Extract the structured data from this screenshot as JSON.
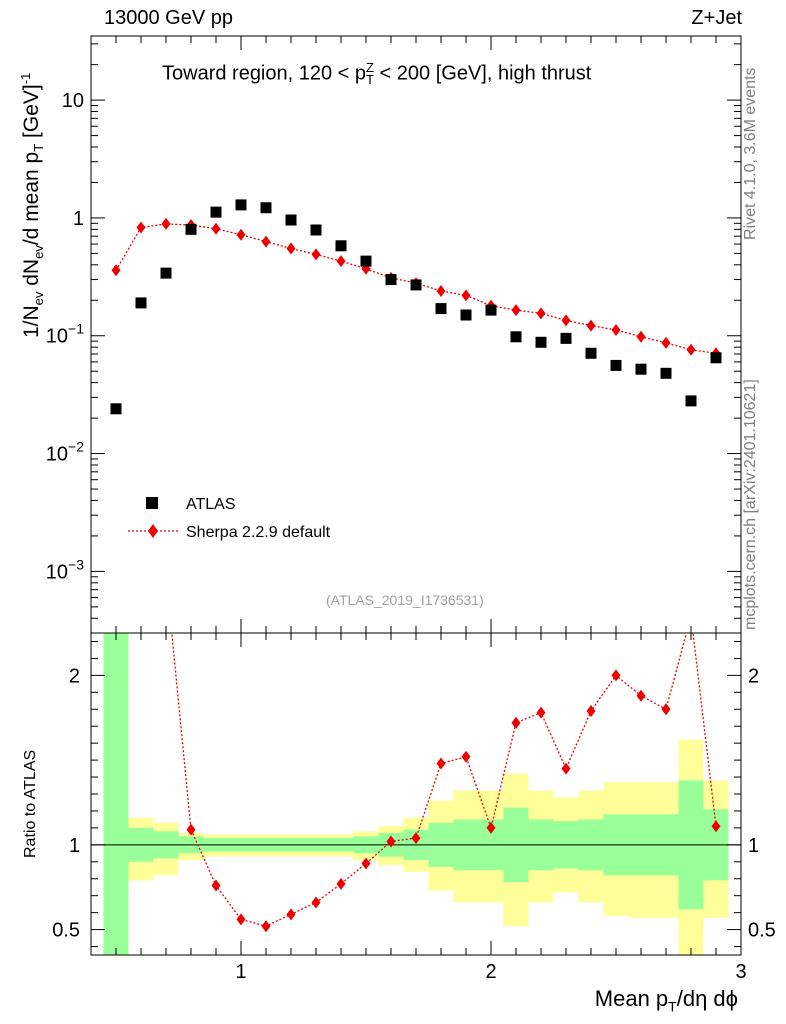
{
  "header": {
    "left": "13000 GeV pp",
    "right": "Z+Jet"
  },
  "subtitle": {
    "prefix": "Toward region, 120 < p",
    "sup": "Z",
    "sub": "T",
    "suffix": " < 200 [GeV], high thrust"
  },
  "side_text": {
    "rivet": "Rivet 4.1.0,  3.6M events",
    "source": "mcplots.cern.ch [arXiv:2401.10621]"
  },
  "watermark": "(ATLAS_2019_I1736531)",
  "ylabel_main": {
    "p1": "1/N",
    "s1": "ev",
    "p2": " dN",
    "s2": "ev",
    "p3": "/d mean p",
    "s3": "T",
    "p4": " [GeV]",
    "sup": "-1"
  },
  "ylabel_ratio": "Ratio to ATLAS",
  "xlabel": {
    "p1": "Mean p",
    "sub": "T",
    "p2": "/dη dϕ"
  },
  "colors": {
    "data": "#000000",
    "mc": "#ee0000",
    "band_stat": "#99ff99",
    "band_total": "#ffff99",
    "axis": "#000000"
  },
  "chart_data": {
    "type": "scatter",
    "x": [
      0.5,
      0.6,
      0.7,
      0.8,
      0.9,
      1.0,
      1.1,
      1.2,
      1.3,
      1.4,
      1.5,
      1.6,
      1.7,
      1.8,
      1.9,
      2.0,
      2.1,
      2.2,
      2.3,
      2.4,
      2.5,
      2.6,
      2.7,
      2.8,
      2.9
    ],
    "x_edges": [
      0.45,
      0.55,
      0.65,
      0.75,
      0.85,
      0.95,
      1.05,
      1.15,
      1.25,
      1.35,
      1.45,
      1.55,
      1.65,
      1.75,
      1.85,
      1.95,
      2.05,
      2.15,
      2.25,
      2.35,
      2.45,
      2.55,
      2.65,
      2.75,
      2.85,
      2.95
    ],
    "xlim": [
      0.4,
      3.0
    ],
    "xticks": [
      1,
      2,
      3
    ],
    "xtick_labels": [
      "1",
      "2",
      "3"
    ],
    "main": {
      "yscale": "log",
      "ylim": [
        0.0003,
        35
      ],
      "ytick_exponents": [
        -3,
        -2,
        -1,
        0,
        1
      ],
      "ytick_labels": [
        {
          "base": "10",
          "exp": "−3"
        },
        {
          "base": "10",
          "exp": "−2"
        },
        {
          "base": "10",
          "exp": "−1"
        },
        {
          "base": "1",
          "exp": ""
        },
        {
          "base": "10",
          "exp": ""
        }
      ]
    },
    "ratio": {
      "ylim": [
        0.35,
        2.25
      ],
      "yticks": [
        0.5,
        1,
        2
      ],
      "ytick_labels": [
        "0.5",
        "1",
        "2"
      ],
      "stat_lo": [
        0.2,
        0.9,
        0.92,
        0.95,
        0.96,
        0.96,
        0.96,
        0.96,
        0.96,
        0.96,
        0.95,
        0.93,
        0.91,
        0.87,
        0.85,
        0.85,
        0.78,
        0.85,
        0.86,
        0.85,
        0.82,
        0.82,
        0.82,
        0.62,
        0.79
      ],
      "stat_hi": [
        2.27,
        1.1,
        1.08,
        1.05,
        1.04,
        1.04,
        1.04,
        1.04,
        1.04,
        1.04,
        1.05,
        1.07,
        1.09,
        1.13,
        1.15,
        1.15,
        1.22,
        1.15,
        1.14,
        1.15,
        1.18,
        1.18,
        1.18,
        1.38,
        1.21
      ],
      "tot_lo": [
        0.2,
        0.79,
        0.82,
        0.91,
        0.93,
        0.93,
        0.93,
        0.93,
        0.93,
        0.93,
        0.91,
        0.88,
        0.84,
        0.73,
        0.66,
        0.66,
        0.52,
        0.66,
        0.72,
        0.66,
        0.58,
        0.57,
        0.57,
        0.2,
        0.57
      ],
      "tot_hi": [
        2.27,
        1.16,
        1.13,
        1.07,
        1.06,
        1.06,
        1.06,
        1.06,
        1.06,
        1.06,
        1.08,
        1.11,
        1.16,
        1.26,
        1.32,
        1.32,
        1.42,
        1.32,
        1.28,
        1.32,
        1.37,
        1.37,
        1.37,
        1.62,
        1.38
      ]
    },
    "series": [
      {
        "name": "ATLAS",
        "marker": "square",
        "values": [
          0.024,
          0.19,
          0.34,
          0.8,
          1.12,
          1.29,
          1.22,
          0.96,
          0.79,
          0.58,
          0.43,
          0.3,
          0.27,
          0.17,
          0.15,
          0.165,
          0.098,
          0.088,
          0.095,
          0.071,
          0.056,
          0.052,
          0.048,
          0.028,
          0.065
        ]
      },
      {
        "name": "Sherpa 2.2.9 default",
        "marker": "diamond",
        "line": "dotted",
        "values": [
          0.36,
          0.83,
          0.89,
          0.87,
          0.81,
          0.72,
          0.63,
          0.55,
          0.49,
          0.43,
          0.37,
          0.31,
          0.28,
          0.24,
          0.22,
          0.18,
          0.165,
          0.155,
          0.135,
          0.122,
          0.112,
          0.098,
          0.087,
          0.076,
          0.071
        ],
        "ratio": [
          15,
          4.4,
          2.6,
          1.09,
          0.76,
          0.56,
          0.52,
          0.59,
          0.66,
          0.77,
          0.89,
          1.02,
          1.04,
          1.48,
          1.52,
          1.1,
          1.72,
          1.78,
          1.45,
          1.79,
          2.0,
          1.88,
          1.8,
          2.35,
          1.11
        ]
      }
    ]
  }
}
